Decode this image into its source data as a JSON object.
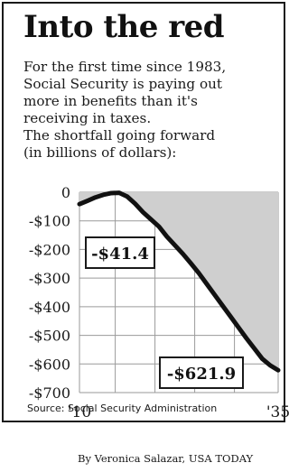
{
  "graphic": {
    "title": "Into the red",
    "subtitle_lines": [
      "For the first time since 1983,",
      "Social Security is paying out",
      "more in benefits than it's",
      "receiving in taxes.",
      "The shortfall going forward",
      "(in billions of dollars):"
    ],
    "source": "Source: Social Security Administration",
    "credit": "By Veronica Salazar, USA TODAY"
  },
  "colors": {
    "line": "#111111",
    "area_fill": "#cfcfcf",
    "gridline": "#9a9a9a",
    "frame": "#1a1a1a",
    "label_box_fill": "#ffffff"
  },
  "chart_data": {
    "type": "area",
    "title": "",
    "xlabel": "",
    "ylabel": "",
    "x": [
      2010,
      2011,
      2012,
      2013,
      2014,
      2015,
      2016,
      2017,
      2018,
      2019,
      2020,
      2021,
      2022,
      2023,
      2024,
      2025,
      2026,
      2027,
      2028,
      2029,
      2030,
      2031,
      2032,
      2033,
      2034,
      2035
    ],
    "series": [
      {
        "values": [
          -41.4,
          -30,
          -18,
          -9,
          -3,
          -2,
          -15,
          -40,
          -70,
          -95,
          -120,
          -155,
          -185,
          -215,
          -248,
          -282,
          -320,
          -358,
          -396,
          -434,
          -472,
          -510,
          -546,
          -582,
          -605,
          -621.9
        ]
      }
    ],
    "xlim": [
      2010,
      2035
    ],
    "ylim": [
      -700,
      0
    ],
    "y_tick_values": [
      0,
      -100,
      -200,
      -300,
      -400,
      -500,
      -600,
      -700
    ],
    "y_tick_labels": [
      "0",
      "-$100",
      "-$200",
      "-$300",
      "-$400",
      "-$500",
      "-$600",
      "-$700"
    ],
    "x_tick_values": [
      2010,
      2035
    ],
    "x_tick_labels": [
      "'10",
      "'35"
    ],
    "grid": {
      "horizontal": true,
      "vertical": true,
      "vertical_x": [
        2010,
        2014.5,
        2019.5,
        2024.5,
        2029.5,
        2035
      ]
    },
    "annotations": [
      {
        "text": "-$41.4",
        "x": 2010,
        "y": -41.4
      },
      {
        "text": "-$621.9",
        "x": 2035,
        "y": -621.9
      }
    ],
    "legend": "none"
  }
}
